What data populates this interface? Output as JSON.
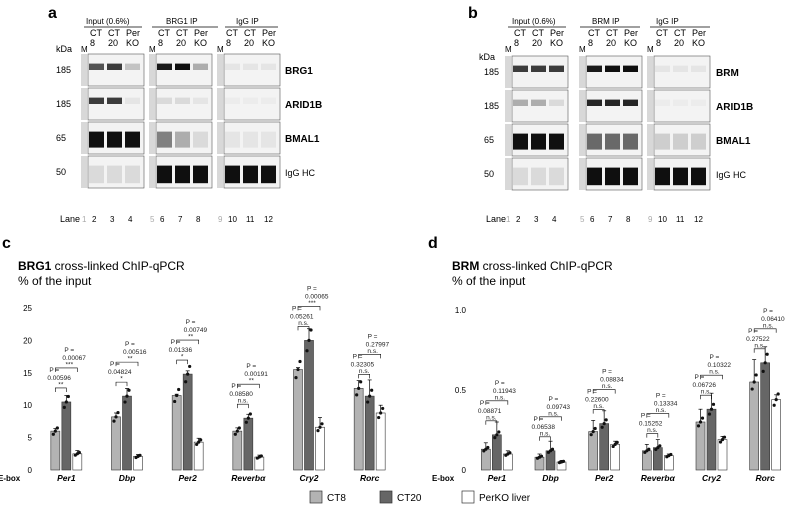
{
  "panels": {
    "a": {
      "letter": "a",
      "headers": [
        "Input (0.6%)",
        "BRG1 IP",
        "IgG IP"
      ],
      "lane_groups": [
        {
          "M": "M",
          "labels": [
            [
              "CT",
              "8"
            ],
            [
              "CT",
              "20"
            ],
            [
              "Per",
              "KO"
            ]
          ]
        },
        {
          "M": "M",
          "labels": [
            [
              "CT",
              "8"
            ],
            [
              "CT",
              "20"
            ],
            [
              "Per",
              "KO"
            ]
          ]
        },
        {
          "M": "M",
          "labels": [
            [
              "CT",
              "8"
            ],
            [
              "CT",
              "20"
            ],
            [
              "Per",
              "KO"
            ]
          ]
        }
      ],
      "kda": "kDa",
      "mw": [
        "185",
        "185",
        "65",
        "50"
      ],
      "blots": [
        "BRG1",
        "ARID1B",
        "BMAL1",
        "IgG HC"
      ],
      "lane_word": "Lane",
      "lanes": [
        "1",
        "2",
        "3",
        "4",
        "5",
        "6",
        "7",
        "8",
        "9",
        "10",
        "11",
        "12"
      ]
    },
    "b": {
      "letter": "b",
      "headers": [
        "Input (0.6%)",
        "BRM IP",
        "IgG IP"
      ],
      "kda": "kDa",
      "mw": [
        "185",
        "185",
        "65",
        "50"
      ],
      "blots": [
        "BRM",
        "ARID1B",
        "BMAL1",
        "IgG HC"
      ],
      "lane_word": "Lane",
      "lanes": [
        "1",
        "2",
        "3",
        "4",
        "5",
        "6",
        "7",
        "8",
        "9",
        "10",
        "11",
        "12"
      ]
    },
    "c": {
      "letter": "c",
      "title_bold": "BRG1",
      "title_rest": " cross-linked ChIP-qPCR",
      "subtitle": "% of the input"
    },
    "d": {
      "letter": "d",
      "title_bold": "BRM",
      "title_rest": " cross-linked ChIP-qPCR",
      "subtitle": "% of the input"
    }
  },
  "legend": {
    "items": [
      {
        "label": "CT8",
        "color": "#b3b3b3"
      },
      {
        "label": "CT20",
        "color": "#666666"
      },
      {
        "label": "PerKO liver",
        "color": "#ffffff"
      }
    ]
  },
  "chart_data": [
    {
      "type": "bar",
      "title": "BRG1 cross-linked ChIP-qPCR",
      "ylabel": "% of the input",
      "xlabel": "E-box",
      "ylim": [
        0,
        25
      ],
      "yticks": [
        "0",
        "5",
        "10",
        "15",
        "20",
        "25"
      ],
      "categories": [
        "Per1",
        "Dbp",
        "Per2",
        "Reverbα",
        "Cry2",
        "Rorc"
      ],
      "series": [
        {
          "name": "CT8",
          "values": [
            6.0,
            8.2,
            11.5,
            6.0,
            15.5,
            12.6
          ]
        },
        {
          "name": "CT20",
          "values": [
            10.5,
            11.4,
            14.8,
            8.0,
            20.0,
            11.4
          ]
        },
        {
          "name": "PerKO liver",
          "values": [
            2.5,
            2.1,
            4.3,
            2.0,
            6.6,
            8.8
          ]
        }
      ],
      "errors": [
        [
          0.4,
          0.6,
          0.2,
          0.5,
          0.3,
          1.2
        ],
        [
          1.0,
          1.2,
          0.5,
          0.6,
          1.8,
          2.5
        ],
        [
          0.5,
          0.3,
          0.6,
          0.3,
          1.5,
          1.2
        ]
      ],
      "stats": [
        {
          "p1": "0.00596",
          "s1": "**",
          "p2": "0.00067",
          "s2": "***"
        },
        {
          "p1": "0.04824",
          "s1": "*",
          "p2": "0.00516",
          "s2": "**"
        },
        {
          "p1": "0.01336",
          "s1": "*",
          "p2": "0.00749",
          "s2": "**"
        },
        {
          "p1": "0.08580",
          "s1": "n.s.",
          "p2": "0.00191",
          "s2": "**"
        },
        {
          "p1": "0.05261",
          "s1": "n.s.",
          "p2": "0.00065",
          "s2": "***"
        },
        {
          "p1": "0.32305",
          "s1": "n.s.",
          "p2": "0.27997",
          "s2": "n.s."
        }
      ],
      "p_label": "P ="
    },
    {
      "type": "bar",
      "title": "BRM cross-linked ChIP-qPCR",
      "ylabel": "% of the input",
      "xlabel": "E-box",
      "ylim": [
        0,
        1.0
      ],
      "yticks": [
        "0",
        "0.5",
        "1.0"
      ],
      "categories": [
        "Per1",
        "Dbp",
        "Per2",
        "Reverbα",
        "Cry2",
        "Rorc"
      ],
      "series": [
        {
          "name": "CT8",
          "values": [
            0.13,
            0.08,
            0.24,
            0.12,
            0.3,
            0.55
          ]
        },
        {
          "name": "CT20",
          "values": [
            0.22,
            0.12,
            0.29,
            0.14,
            0.38,
            0.67
          ]
        },
        {
          "name": "PerKO liver",
          "values": [
            0.1,
            0.05,
            0.16,
            0.09,
            0.19,
            0.44
          ]
        }
      ],
      "errors": [
        [
          0.04,
          0.02,
          0.07,
          0.04,
          0.08,
          0.14
        ],
        [
          0.08,
          0.06,
          0.08,
          0.05,
          0.1,
          0.1
        ],
        [
          0.02,
          0.01,
          0.02,
          0.01,
          0.02,
          0.03
        ]
      ],
      "stats": [
        {
          "p1": "0.08871",
          "s1": "n.s.",
          "p2": "0.11943",
          "s2": "n.s."
        },
        {
          "p1": "0.06538",
          "s1": "n.s.",
          "p2": "0.09743",
          "s2": "n.s."
        },
        {
          "p1": "0.22600",
          "s1": "n.s.",
          "p2": "0.08834",
          "s2": "n.s."
        },
        {
          "p1": "0.15252",
          "s1": "n.s.",
          "p2": "0.13334",
          "s2": "n.s."
        },
        {
          "p1": "0.06726",
          "s1": "n.s.",
          "p2": "0.10322",
          "s2": "n.s."
        },
        {
          "p1": "0.27522",
          "s1": "n.s.",
          "p2": "0.06410",
          "s2": "n.s."
        }
      ],
      "p_label": "P ="
    }
  ]
}
